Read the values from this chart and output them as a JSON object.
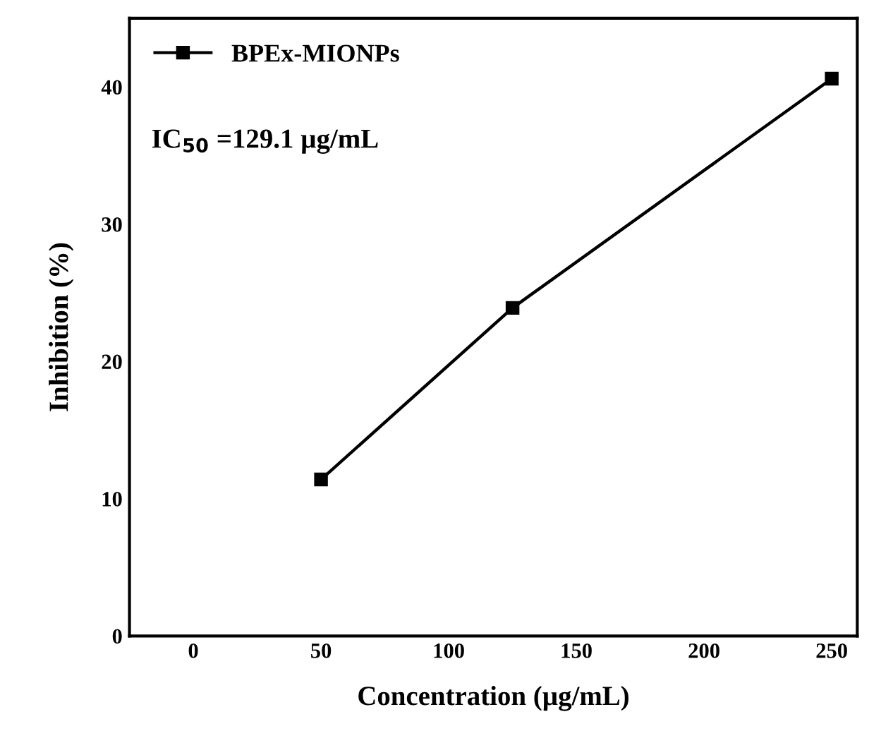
{
  "chart_data": {
    "type": "line",
    "xlabel": "Concentration (µg/mL)",
    "ylabel": "Inhibition (%)",
    "x": [
      50,
      125,
      250
    ],
    "series": [
      {
        "name": "BPEx-MIONPs",
        "color": "#000000",
        "values": [
          11.4,
          23.9,
          40.6
        ]
      }
    ],
    "annotations": [
      "IC$_{50}$ =129.1 µg/mL"
    ],
    "xlim": [
      -25,
      260
    ],
    "xticks": [
      0,
      50,
      100,
      150,
      200,
      250
    ],
    "ylim": [
      0,
      45
    ],
    "yticks": [
      0,
      10,
      20,
      30,
      40
    ],
    "legend": "top left",
    "marker": "square",
    "line_style": "solid",
    "grid": false
  }
}
